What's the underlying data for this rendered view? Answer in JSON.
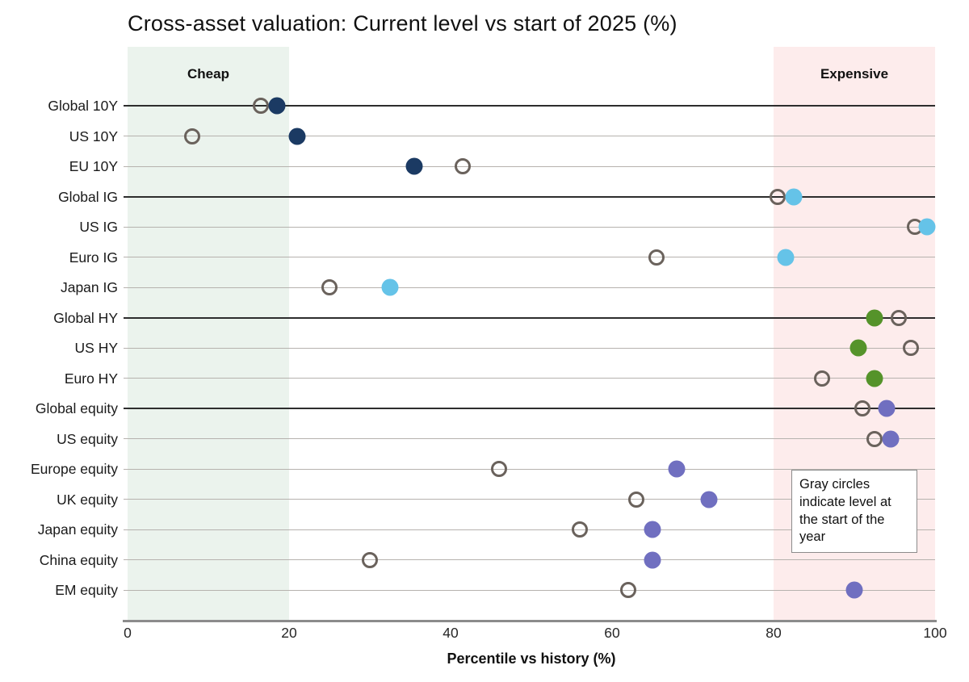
{
  "page": {
    "title": "Cross-asset valuation: Current level vs start of 2025 (%)",
    "annotation_note": "Gray circles indicate level at the start of the year"
  },
  "chart_data": {
    "type": "scatter",
    "title": "Cross-asset valuation: Current level vs start of 2025 (%)",
    "xlabel": "Percentile vs history (%)",
    "ylabel": "",
    "xlim": [
      0,
      100
    ],
    "xticks": [
      0,
      20,
      40,
      60,
      80,
      100
    ],
    "grid": "horizontal-row-lines",
    "legend_note": "Gray circles indicate level at the start of the year",
    "start_marker": {
      "name": "open-circle",
      "stroke_color": "#6a625c"
    },
    "bands": [
      {
        "label": "Cheap",
        "range": [
          0,
          20
        ],
        "color": "#ebf3ed"
      },
      {
        "label": "Expensive",
        "range": [
          80,
          100
        ],
        "color": "#fdecec"
      }
    ],
    "rows": [
      {
        "label": "Global 10Y",
        "start": 16.5,
        "current": 18.5,
        "color": "#1b3a63",
        "emphasis": true
      },
      {
        "label": "US 10Y",
        "start": 8,
        "current": 21,
        "color": "#1b3a63",
        "emphasis": false
      },
      {
        "label": "EU 10Y",
        "start": 41.5,
        "current": 35.5,
        "color": "#1b3a63",
        "emphasis": false
      },
      {
        "label": "Global IG",
        "start": 80.5,
        "current": 82.5,
        "color": "#65c3e8",
        "emphasis": true
      },
      {
        "label": "US IG",
        "start": 97.5,
        "current": 99,
        "color": "#65c3e8",
        "emphasis": false
      },
      {
        "label": "Euro IG",
        "start": 65.5,
        "current": 81.5,
        "color": "#65c3e8",
        "emphasis": false
      },
      {
        "label": "Japan IG",
        "start": 25,
        "current": 32.5,
        "color": "#65c3e8",
        "emphasis": false
      },
      {
        "label": "Global HY",
        "start": 95.5,
        "current": 92.5,
        "color": "#55932a",
        "emphasis": true
      },
      {
        "label": "US HY",
        "start": 97,
        "current": 90.5,
        "color": "#55932a",
        "emphasis": false
      },
      {
        "label": "Euro HY",
        "start": 86,
        "current": 92.5,
        "color": "#55932a",
        "emphasis": false
      },
      {
        "label": "Global equity",
        "start": 91,
        "current": 94,
        "color": "#706fc0",
        "emphasis": true
      },
      {
        "label": "US equity",
        "start": 92.5,
        "current": 94.5,
        "color": "#706fc0",
        "emphasis": false
      },
      {
        "label": "Europe equity",
        "start": 46,
        "current": 68,
        "color": "#706fc0",
        "emphasis": false
      },
      {
        "label": "UK equity",
        "start": 63,
        "current": 72,
        "color": "#706fc0",
        "emphasis": false
      },
      {
        "label": "Japan equity",
        "start": 56,
        "current": 65,
        "color": "#706fc0",
        "emphasis": false
      },
      {
        "label": "China equity",
        "start": 30,
        "current": 65,
        "color": "#706fc0",
        "emphasis": false
      },
      {
        "label": "EM equity",
        "start": 62,
        "current": 90,
        "color": "#706fc0",
        "emphasis": false
      }
    ],
    "colors": {
      "rates": "#1b3a63",
      "investment_grade": "#65c3e8",
      "high_yield": "#55932a",
      "equity": "#706fc0",
      "start_circle": "#6a625c",
      "cheap_band": "#ebf3ed",
      "expensive_band": "#fdecec",
      "axis": "#8c8c8c"
    }
  }
}
